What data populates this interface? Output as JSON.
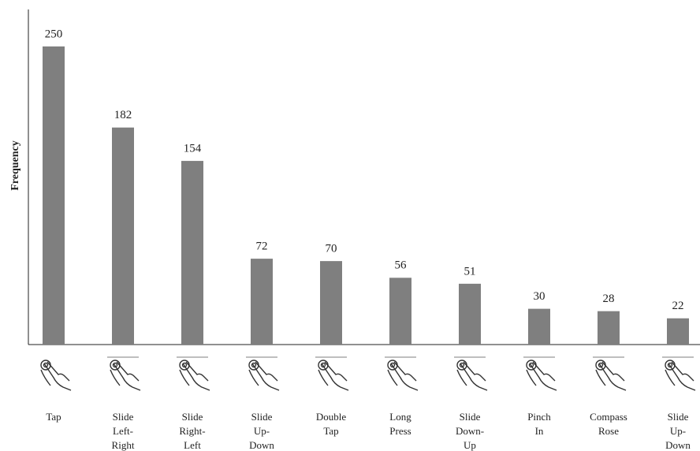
{
  "chart_data": {
    "type": "bar",
    "y_label": "Frequency",
    "categories": [
      [
        "Tap"
      ],
      [
        "Slide",
        "Left-",
        "Right"
      ],
      [
        "Slide",
        "Right-",
        "Left"
      ],
      [
        "Slide",
        "Up-",
        "Down"
      ],
      [
        "Double",
        "Tap"
      ],
      [
        "Long",
        "Press"
      ],
      [
        "Slide",
        "Down-",
        "Up"
      ],
      [
        "Pinch",
        "In"
      ],
      [
        "Compass",
        "Rose"
      ],
      [
        "Slide",
        "Up-",
        "Down"
      ]
    ],
    "values": [
      250,
      182,
      154,
      72,
      70,
      56,
      51,
      30,
      28,
      22
    ],
    "color": "#7f7f7f",
    "ylim": [
      0,
      281
    ]
  }
}
